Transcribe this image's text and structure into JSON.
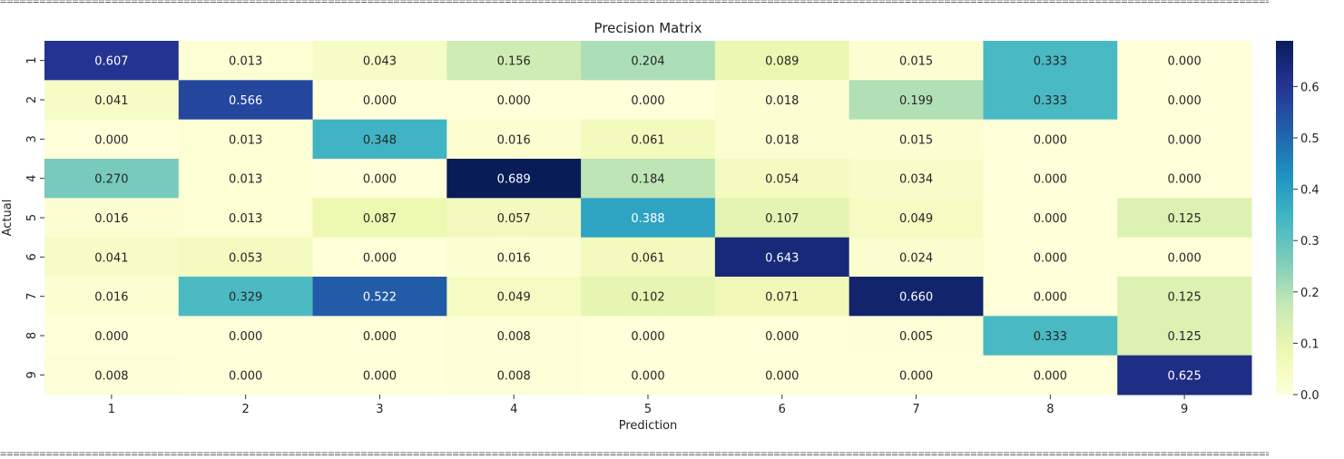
{
  "separator_text": "==================================================================================================================================================================================================================================================",
  "chart_data": {
    "type": "heatmap",
    "title": "Precision Matrix",
    "xlabel": "Prediction",
    "ylabel": "Actual",
    "x_categories": [
      "1",
      "2",
      "3",
      "4",
      "5",
      "6",
      "7",
      "8",
      "9"
    ],
    "y_categories": [
      "1",
      "2",
      "3",
      "4",
      "5",
      "6",
      "7",
      "8",
      "9"
    ],
    "values": [
      [
        0.607,
        0.013,
        0.043,
        0.156,
        0.204,
        0.089,
        0.015,
        0.333,
        0.0
      ],
      [
        0.041,
        0.566,
        0.0,
        0.0,
        0.0,
        0.018,
        0.199,
        0.333,
        0.0
      ],
      [
        0.0,
        0.013,
        0.348,
        0.016,
        0.061,
        0.018,
        0.015,
        0.0,
        0.0
      ],
      [
        0.27,
        0.013,
        0.0,
        0.689,
        0.184,
        0.054,
        0.034,
        0.0,
        0.0
      ],
      [
        0.016,
        0.013,
        0.087,
        0.057,
        0.388,
        0.107,
        0.049,
        0.0,
        0.125
      ],
      [
        0.041,
        0.053,
        0.0,
        0.016,
        0.061,
        0.643,
        0.024,
        0.0,
        0.0
      ],
      [
        0.016,
        0.329,
        0.522,
        0.049,
        0.102,
        0.071,
        0.66,
        0.0,
        0.125
      ],
      [
        0.0,
        0.0,
        0.0,
        0.008,
        0.0,
        0.0,
        0.005,
        0.333,
        0.125
      ],
      [
        0.008,
        0.0,
        0.0,
        0.008,
        0.0,
        0.0,
        0.0,
        0.0,
        0.625
      ]
    ],
    "value_format": "0.000",
    "colormap": "YlGnBu",
    "vmin": 0.0,
    "vmax": 0.689,
    "colorbar_ticks": [
      0.0,
      0.1,
      0.2,
      0.3,
      0.4,
      0.5,
      0.6
    ],
    "colorbar_tick_labels": [
      "0.0",
      "0.1",
      "0.2",
      "0.3",
      "0.4",
      "0.5",
      "0.6"
    ]
  }
}
